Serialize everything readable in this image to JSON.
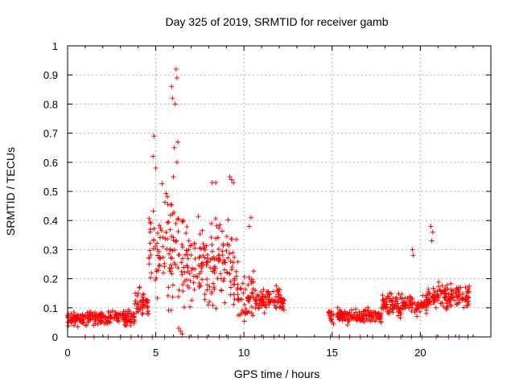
{
  "chart_data": {
    "type": "scatter",
    "title": "Day 325 of 2019, SRMTID for receiver gamb",
    "xlabel": "GPS time / hours",
    "ylabel": "SRMTID / TECUs",
    "xlim": [
      0,
      24
    ],
    "ylim": [
      0,
      1
    ],
    "xticks": [
      0,
      5,
      10,
      15,
      20
    ],
    "yticks": [
      0,
      0.1,
      0.2,
      0.3,
      0.4,
      0.5,
      0.6,
      0.7,
      0.8,
      0.9,
      1
    ],
    "xtick_labels": [
      "0",
      "5",
      "10",
      "15",
      "20"
    ],
    "ytick_labels": [
      "0",
      "0.1",
      "0.2",
      "0.3",
      "0.4",
      "0.5",
      "0.6",
      "0.7",
      "0.8",
      "0.9",
      "1"
    ],
    "grid": true,
    "marker": "+",
    "color": "#ff0000",
    "series": [
      {
        "name": "SRMTID",
        "segments": [
          {
            "x_start": 0.0,
            "x_end": 3.8,
            "base": 0.065,
            "spread": 0.035
          },
          {
            "x_start": 3.8,
            "x_end": 4.6,
            "base": 0.12,
            "spread": 0.07
          },
          {
            "x_start": 4.6,
            "x_end": 5.2,
            "base": 0.3,
            "spread": 0.25
          },
          {
            "x_start": 5.2,
            "x_end": 6.6,
            "base": 0.32,
            "spread": 0.3
          },
          {
            "x_start": 6.6,
            "x_end": 8.0,
            "base": 0.25,
            "spread": 0.2
          },
          {
            "x_start": 8.0,
            "x_end": 9.6,
            "base": 0.25,
            "spread": 0.22
          },
          {
            "x_start": 9.6,
            "x_end": 10.6,
            "base": 0.15,
            "spread": 0.12
          },
          {
            "x_start": 10.6,
            "x_end": 12.3,
            "base": 0.13,
            "spread": 0.06
          },
          {
            "x_start": 14.8,
            "x_end": 17.8,
            "base": 0.07,
            "spread": 0.035
          },
          {
            "x_start": 17.8,
            "x_end": 20.4,
            "base": 0.11,
            "spread": 0.05
          },
          {
            "x_start": 20.4,
            "x_end": 22.8,
            "base": 0.14,
            "spread": 0.06
          }
        ],
        "highlights": [
          {
            "x": 4.9,
            "y": 0.69
          },
          {
            "x": 4.85,
            "y": 0.62
          },
          {
            "x": 5.0,
            "y": 0.58
          },
          {
            "x": 5.9,
            "y": 0.86
          },
          {
            "x": 5.95,
            "y": 0.82
          },
          {
            "x": 6.15,
            "y": 0.92
          },
          {
            "x": 6.2,
            "y": 0.89
          },
          {
            "x": 6.1,
            "y": 0.8
          },
          {
            "x": 6.25,
            "y": 0.67
          },
          {
            "x": 6.05,
            "y": 0.65
          },
          {
            "x": 6.2,
            "y": 0.6
          },
          {
            "x": 6.0,
            "y": 0.55
          },
          {
            "x": 6.3,
            "y": 0.03
          },
          {
            "x": 6.4,
            "y": 0.02
          },
          {
            "x": 6.5,
            "y": 0.01
          },
          {
            "x": 8.2,
            "y": 0.53
          },
          {
            "x": 8.4,
            "y": 0.53
          },
          {
            "x": 9.2,
            "y": 0.55
          },
          {
            "x": 9.3,
            "y": 0.54
          },
          {
            "x": 9.4,
            "y": 0.53
          },
          {
            "x": 10.4,
            "y": 0.41
          },
          {
            "x": 10.3,
            "y": 0.38
          },
          {
            "x": 20.6,
            "y": 0.38
          },
          {
            "x": 20.7,
            "y": 0.36
          },
          {
            "x": 20.65,
            "y": 0.33
          },
          {
            "x": 19.6,
            "y": 0.28
          },
          {
            "x": 19.55,
            "y": 0.3
          }
        ],
        "zero_points_x": [
          1.0,
          1.5,
          2.3,
          3.0,
          3.6,
          4.2,
          4.8,
          5.5,
          6.9,
          7.4,
          7.9,
          8.6,
          9.1,
          9.8,
          10.6,
          11.1,
          11.7,
          12.3,
          14.9,
          15.4,
          16.0,
          16.6,
          17.3,
          18.2,
          18.9,
          19.5,
          20.1,
          20.9,
          21.6,
          22.2,
          22.7
        ]
      }
    ]
  }
}
